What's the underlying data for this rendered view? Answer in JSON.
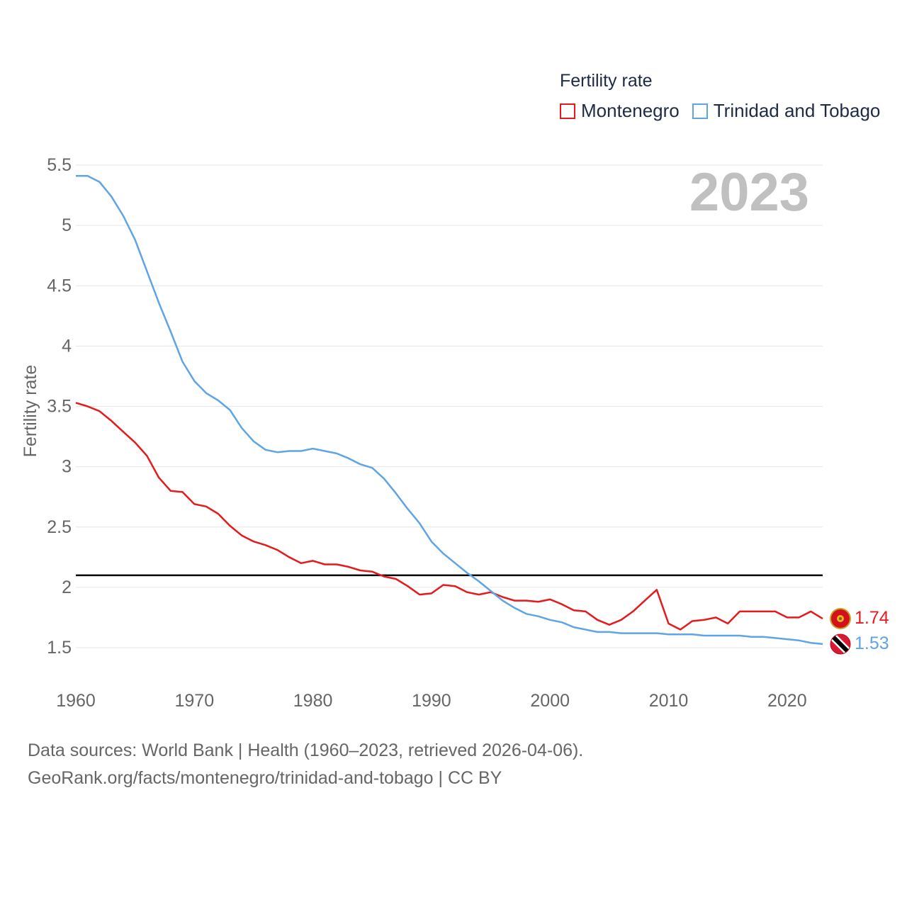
{
  "legend": {
    "title": "Fertility rate",
    "items": [
      {
        "name": "Montenegro",
        "color": "#e41a1c"
      },
      {
        "name": "Trinidad and Tobago",
        "color": "#5fa4e6"
      }
    ]
  },
  "year_label": "2023",
  "footer": {
    "line1": "Data sources: World Bank | Health (1960–2023, retrieved 2026-04-06).",
    "line2": "GeoRank.org/facts/montenegro/trinidad-and-tobago | CC BY"
  },
  "chart_data": {
    "type": "line",
    "title": "Fertility rate",
    "xlabel": "",
    "ylabel": "Fertility rate",
    "xlim": [
      1960,
      2023
    ],
    "ylim": [
      1.3,
      5.5
    ],
    "x_ticks": [
      1960,
      1970,
      1980,
      1990,
      2000,
      2010,
      2020
    ],
    "y_ticks": [
      1.5,
      2,
      2.5,
      3,
      3.5,
      4,
      4.5,
      5,
      5.5
    ],
    "y_tick_labels": [
      "1.5",
      "2",
      "2.5",
      "3",
      "3.5",
      "4",
      "4.5",
      "5",
      "5.5"
    ],
    "grid": true,
    "reference_line": {
      "y": 2.1,
      "color": "#000000"
    },
    "x": [
      1960,
      1961,
      1962,
      1963,
      1964,
      1965,
      1966,
      1967,
      1968,
      1969,
      1970,
      1971,
      1972,
      1973,
      1974,
      1975,
      1976,
      1977,
      1978,
      1979,
      1980,
      1981,
      1982,
      1983,
      1984,
      1985,
      1986,
      1987,
      1988,
      1989,
      1990,
      1991,
      1992,
      1993,
      1994,
      1995,
      1996,
      1997,
      1998,
      1999,
      2000,
      2001,
      2002,
      2003,
      2004,
      2005,
      2006,
      2007,
      2008,
      2009,
      2010,
      2011,
      2012,
      2013,
      2014,
      2015,
      2016,
      2017,
      2018,
      2019,
      2020,
      2021,
      2022,
      2023
    ],
    "series": [
      {
        "name": "Montenegro",
        "color": "#e41a1c",
        "end_label": "1.74",
        "values": [
          3.53,
          3.5,
          3.46,
          3.38,
          3.29,
          3.2,
          3.09,
          2.91,
          2.8,
          2.79,
          2.69,
          2.67,
          2.61,
          2.51,
          2.43,
          2.38,
          2.35,
          2.31,
          2.25,
          2.2,
          2.22,
          2.19,
          2.19,
          2.17,
          2.14,
          2.13,
          2.09,
          2.07,
          2.01,
          1.94,
          1.95,
          2.02,
          2.01,
          1.96,
          1.94,
          1.96,
          1.92,
          1.89,
          1.89,
          1.88,
          1.9,
          1.86,
          1.81,
          1.8,
          1.73,
          1.69,
          1.73,
          1.8,
          1.89,
          1.98,
          1.7,
          1.65,
          1.72,
          1.73,
          1.75,
          1.7,
          1.8,
          1.8,
          1.8,
          1.8,
          1.75,
          1.75,
          1.8,
          1.74
        ]
      },
      {
        "name": "Trinidad and Tobago",
        "color": "#5fa4e6",
        "end_label": "1.53",
        "values": [
          5.41,
          5.41,
          5.36,
          5.24,
          5.08,
          4.88,
          4.62,
          4.36,
          4.12,
          3.87,
          3.71,
          3.61,
          3.55,
          3.47,
          3.32,
          3.21,
          3.14,
          3.12,
          3.13,
          3.13,
          3.15,
          3.13,
          3.11,
          3.07,
          3.02,
          2.99,
          2.9,
          2.78,
          2.65,
          2.53,
          2.38,
          2.28,
          2.2,
          2.12,
          2.05,
          1.97,
          1.89,
          1.83,
          1.78,
          1.76,
          1.73,
          1.71,
          1.67,
          1.65,
          1.63,
          1.63,
          1.62,
          1.62,
          1.62,
          1.62,
          1.61,
          1.61,
          1.61,
          1.6,
          1.6,
          1.6,
          1.6,
          1.59,
          1.59,
          1.58,
          1.57,
          1.56,
          1.54,
          1.53
        ]
      }
    ]
  }
}
